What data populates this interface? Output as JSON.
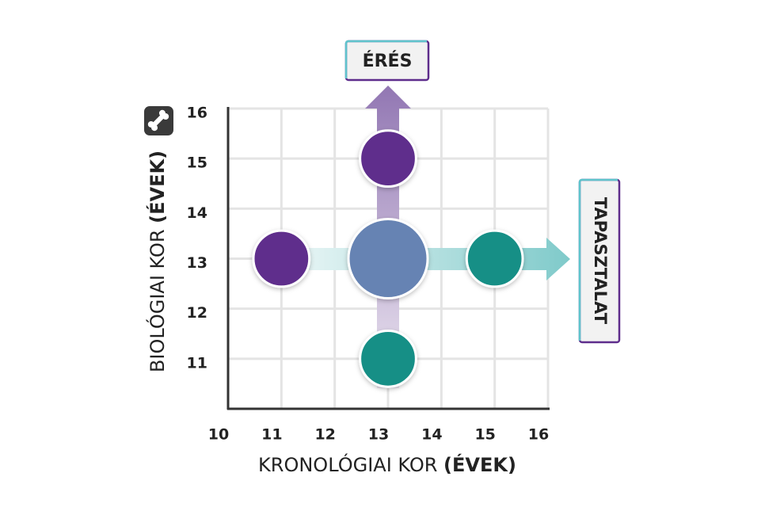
{
  "chart_data": {
    "type": "scatter",
    "xlabel": {
      "text": "KRONOLÓGIAI KOR",
      "unit": "(ÉVEK)"
    },
    "ylabel": {
      "text": "BIOLÓGIAI KOR",
      "unit": "(ÉVEK)"
    },
    "series": [
      {
        "x": [
          11,
          13,
          15,
          13,
          13
        ],
        "y": [
          13,
          13,
          13,
          15,
          11
        ],
        "sizes": [
          1,
          2,
          1,
          1,
          1
        ],
        "colors": [
          "#5e2d8c",
          "#6683b3",
          "#178f86",
          "#5e2d8c",
          "#178f86"
        ]
      }
    ],
    "xlim": [
      10,
      16
    ],
    "xticks": [
      10,
      11,
      12,
      13,
      14,
      15,
      16
    ],
    "ylim": [
      10,
      16
    ],
    "yticks": [
      11,
      12,
      13,
      14,
      15,
      16
    ],
    "grid": true,
    "annotations": [
      {
        "text": "ÉRÉS"
      },
      {
        "text": "TAPASZTALAT"
      }
    ]
  }
}
